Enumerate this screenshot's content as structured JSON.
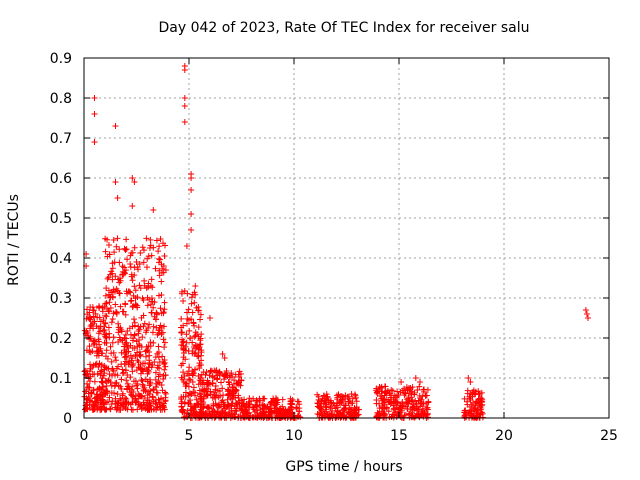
{
  "chart_data": {
    "type": "scatter",
    "title": "Day 042 of 2023, Rate Of TEC Index for receiver salu",
    "xlabel": "GPS time / hours",
    "ylabel": "ROTI / TECUs",
    "xlim": [
      0,
      25
    ],
    "ylim": [
      0,
      0.9
    ],
    "xticks": [
      0,
      5,
      10,
      15,
      20,
      25
    ],
    "yticks": [
      0,
      0.1,
      0.2,
      0.3,
      0.4,
      0.5,
      0.6,
      0.7,
      0.8,
      0.9
    ],
    "grid": true,
    "marker": "+",
    "colors": {
      "series": "#ff0000",
      "grid": "#a0a0a0",
      "axes": "#000000"
    },
    "clusters": [
      {
        "x": [
          0.0,
          1.1
        ],
        "y": [
          0.02,
          0.28
        ],
        "n": 220
      },
      {
        "x": [
          1.0,
          3.9
        ],
        "y": [
          0.02,
          0.45
        ],
        "n": 560
      },
      {
        "x": [
          4.6,
          5.6
        ],
        "y": [
          0.0,
          0.32
        ],
        "n": 200
      },
      {
        "x": [
          5.5,
          7.5
        ],
        "y": [
          0.0,
          0.12
        ],
        "n": 260
      },
      {
        "x": [
          7.5,
          10.3
        ],
        "y": [
          0.0,
          0.05
        ],
        "n": 240
      },
      {
        "x": [
          11.1,
          13.1
        ],
        "y": [
          0.0,
          0.06
        ],
        "n": 180
      },
      {
        "x": [
          13.9,
          16.4
        ],
        "y": [
          0.0,
          0.08
        ],
        "n": 230
      },
      {
        "x": [
          18.1,
          19.0
        ],
        "y": [
          0.0,
          0.07
        ],
        "n": 90
      }
    ],
    "points": [
      {
        "x": 0.5,
        "y": 0.8
      },
      {
        "x": 0.5,
        "y": 0.76
      },
      {
        "x": 0.5,
        "y": 0.69
      },
      {
        "x": 1.5,
        "y": 0.73
      },
      {
        "x": 1.5,
        "y": 0.59
      },
      {
        "x": 1.6,
        "y": 0.55
      },
      {
        "x": 2.3,
        "y": 0.6
      },
      {
        "x": 2.4,
        "y": 0.59
      },
      {
        "x": 2.3,
        "y": 0.53
      },
      {
        "x": 3.3,
        "y": 0.52
      },
      {
        "x": 0.1,
        "y": 0.41
      },
      {
        "x": 0.1,
        "y": 0.38
      },
      {
        "x": 4.8,
        "y": 0.88
      },
      {
        "x": 4.8,
        "y": 0.87
      },
      {
        "x": 4.8,
        "y": 0.8
      },
      {
        "x": 4.8,
        "y": 0.78
      },
      {
        "x": 4.8,
        "y": 0.74
      },
      {
        "x": 5.1,
        "y": 0.61
      },
      {
        "x": 5.1,
        "y": 0.6
      },
      {
        "x": 5.1,
        "y": 0.57
      },
      {
        "x": 5.1,
        "y": 0.51
      },
      {
        "x": 5.1,
        "y": 0.47
      },
      {
        "x": 4.9,
        "y": 0.43
      },
      {
        "x": 3.8,
        "y": 0.38
      },
      {
        "x": 3.9,
        "y": 0.37
      },
      {
        "x": 5.3,
        "y": 0.33
      },
      {
        "x": 6.0,
        "y": 0.25
      },
      {
        "x": 6.6,
        "y": 0.16
      },
      {
        "x": 6.7,
        "y": 0.15
      },
      {
        "x": 15.1,
        "y": 0.09
      },
      {
        "x": 15.8,
        "y": 0.1
      },
      {
        "x": 16.0,
        "y": 0.09
      },
      {
        "x": 18.3,
        "y": 0.1
      },
      {
        "x": 18.4,
        "y": 0.09
      },
      {
        "x": 18.8,
        "y": 0.06
      },
      {
        "x": 23.9,
        "y": 0.27
      },
      {
        "x": 24.0,
        "y": 0.25
      },
      {
        "x": 23.95,
        "y": 0.26
      }
    ]
  }
}
